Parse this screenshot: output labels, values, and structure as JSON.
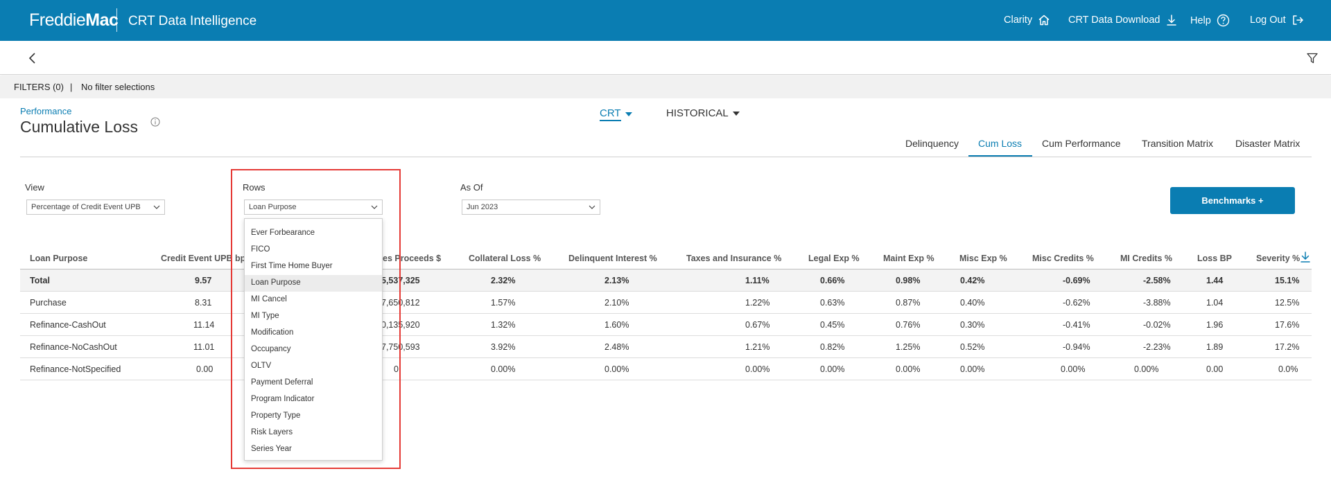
{
  "header": {
    "brand": "FreddieMac",
    "app_title": "CRT Data Intelligence",
    "nav": {
      "clarity": "Clarity",
      "download": "CRT Data Download",
      "help": "Help",
      "logout": "Log Out"
    },
    "icons": [
      "home-icon",
      "download-icon",
      "help-icon",
      "logout-icon"
    ]
  },
  "subbar": {
    "icons": [
      "back-chevron-icon",
      "filter-icon"
    ]
  },
  "filters": {
    "label": "FILTERS (0)",
    "separator": "|",
    "text": "No filter selections"
  },
  "page": {
    "eyebrow": "Performance",
    "title": "Cumulative Loss",
    "segments": {
      "crt": "CRT",
      "historical": "HISTORICAL"
    },
    "tabs": [
      "Delinquency",
      "Cum Loss",
      "Cum Performance",
      "Transition Matrix",
      "Disaster Matrix"
    ],
    "active_tab": "Cum Loss"
  },
  "controls": {
    "view": {
      "label": "View",
      "value": "Percentage of Credit Event UPB"
    },
    "rows": {
      "label": "Rows",
      "value": "Loan Purpose"
    },
    "as_of": {
      "label": "As Of",
      "value": "Jun 2023"
    },
    "benchmarks_button": "Benchmarks +"
  },
  "dropdown": {
    "options": [
      "Ever Forbearance",
      "FICO",
      "First Time Home Buyer",
      "Loan Purpose",
      "MI Cancel",
      "MI Type",
      "Modification",
      "Occupancy",
      "OLTV",
      "Payment Deferral",
      "Program Indicator",
      "Property Type",
      "Risk Layers",
      "Series Year"
    ],
    "selected": "Loan Purpose"
  },
  "table": {
    "headers": {
      "loan_purpose": "Loan Purpose",
      "credit_event_upb": "Credit Event UPB bp",
      "sales_proceeds": "es Proceeds $",
      "collateral_loss": "Collateral Loss %",
      "delinquent_interest": "Delinquent Interest %",
      "taxes_insurance": "Taxes and Insurance %",
      "legal_exp": "Legal Exp %",
      "maint_exp": "Maint Exp %",
      "misc_exp": "Misc Exp %",
      "misc_credits": "Misc Credits %",
      "mi_credits": "MI Credits %",
      "loss_bp": "Loss BP",
      "severity": "Severity %"
    },
    "rows": [
      {
        "name": "Total",
        "credit_event_upb": "9.57",
        "sales_proceeds": "5,537,325",
        "collateral_loss": "2.32%",
        "delinquent_interest": "2.13%",
        "taxes_insurance": "1.11%",
        "legal_exp": "0.66%",
        "maint_exp": "0.98%",
        "misc_exp": "0.42%",
        "misc_credits": "-0.69%",
        "mi_credits": "-2.58%",
        "loss_bp": "1.44",
        "severity": "15.1%"
      },
      {
        "name": "Purchase",
        "credit_event_upb": "8.31",
        "sales_proceeds": "7,650,812",
        "collateral_loss": "1.57%",
        "delinquent_interest": "2.10%",
        "taxes_insurance": "1.22%",
        "legal_exp": "0.63%",
        "maint_exp": "0.87%",
        "misc_exp": "0.40%",
        "misc_credits": "-0.62%",
        "mi_credits": "-3.88%",
        "loss_bp": "1.04",
        "severity": "12.5%"
      },
      {
        "name": "Refinance-CashOut",
        "credit_event_upb": "11.14",
        "sales_proceeds": "0,135,920",
        "collateral_loss": "1.32%",
        "delinquent_interest": "1.60%",
        "taxes_insurance": "0.67%",
        "legal_exp": "0.45%",
        "maint_exp": "0.76%",
        "misc_exp": "0.30%",
        "misc_credits": "-0.41%",
        "mi_credits": "-0.02%",
        "loss_bp": "1.96",
        "severity": "17.6%"
      },
      {
        "name": "Refinance-NoCashOut",
        "credit_event_upb": "11.01",
        "sales_proceeds": "7,750,593",
        "collateral_loss": "3.92%",
        "delinquent_interest": "2.48%",
        "taxes_insurance": "1.21%",
        "legal_exp": "0.82%",
        "maint_exp": "1.25%",
        "misc_exp": "0.52%",
        "misc_credits": "-0.94%",
        "mi_credits": "-2.23%",
        "loss_bp": "1.89",
        "severity": "17.2%"
      },
      {
        "name": "Refinance-NotSpecified",
        "credit_event_upb": "0.00",
        "sales_proceeds": "0",
        "collateral_loss": "0.00%",
        "delinquent_interest": "0.00%",
        "taxes_insurance": "0.00%",
        "legal_exp": "0.00%",
        "maint_exp": "0.00%",
        "misc_exp": "0.00%",
        "misc_credits": "0.00%",
        "mi_credits": "0.00%",
        "loss_bp": "0.00",
        "severity": "0.0%"
      }
    ]
  },
  "colors": {
    "brand_blue": "#0a7db2",
    "highlight_red": "#e53935"
  }
}
